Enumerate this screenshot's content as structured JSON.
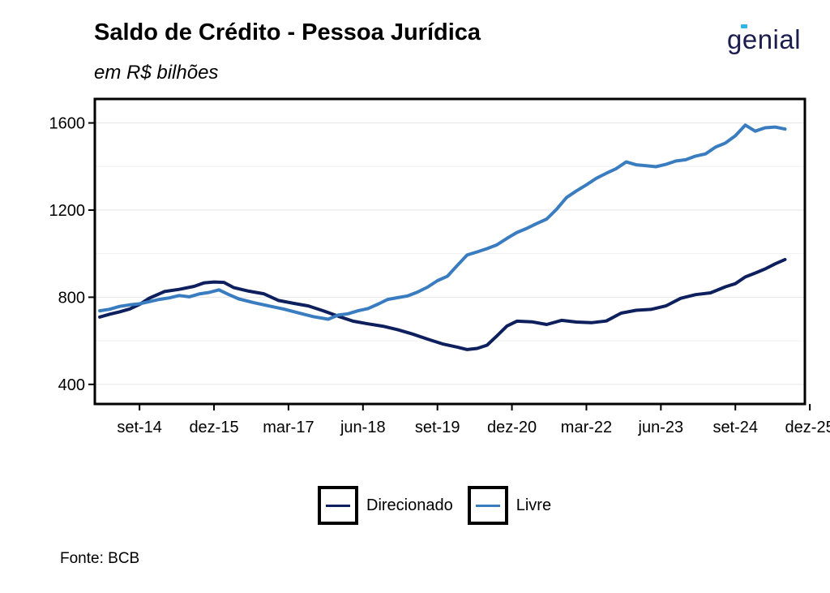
{
  "title": "Saldo de Crédito - Pessoa Jurídica",
  "subtitle": "em R$ bilhões",
  "source": "Fonte: BCB",
  "logo_text": "genial",
  "colors": {
    "Direcionado": "#0d1f5c",
    "Livre": "#3a7cc0",
    "accent": "#2fb5e8"
  },
  "chart_data": {
    "type": "line",
    "ylim": [
      310,
      1710
    ],
    "xlim": [
      "2013-12",
      "2025-11"
    ],
    "grid": "horizontal",
    "legend_placement": "bottom",
    "x_ticks": [
      {
        "date": "2014-09",
        "label": "set-14"
      },
      {
        "date": "2015-12",
        "label": "dez-15"
      },
      {
        "date": "2017-03",
        "label": "mar-17"
      },
      {
        "date": "2018-06",
        "label": "jun-18"
      },
      {
        "date": "2019-09",
        "label": "set-19"
      },
      {
        "date": "2020-12",
        "label": "dez-20"
      },
      {
        "date": "2022-03",
        "label": "mar-22"
      },
      {
        "date": "2023-06",
        "label": "jun-23"
      },
      {
        "date": "2024-09",
        "label": "set-24"
      },
      {
        "date": "2025-12",
        "label": "dez-25"
      }
    ],
    "y_ticks": [
      400,
      800,
      1200,
      1600
    ],
    "series": [
      {
        "name": "Direcionado",
        "points": [
          [
            "2014-01",
            709
          ],
          [
            "2014-03",
            722
          ],
          [
            "2014-05",
            733
          ],
          [
            "2014-07",
            746
          ],
          [
            "2014-09",
            767
          ],
          [
            "2014-11",
            796
          ],
          [
            "2015-02",
            826
          ],
          [
            "2015-05",
            836
          ],
          [
            "2015-08",
            850
          ],
          [
            "2015-10",
            866
          ],
          [
            "2015-12",
            870
          ],
          [
            "2016-02",
            868
          ],
          [
            "2016-04",
            844
          ],
          [
            "2016-07",
            828
          ],
          [
            "2016-10",
            816
          ],
          [
            "2017-01",
            785
          ],
          [
            "2017-04",
            772
          ],
          [
            "2017-07",
            760
          ],
          [
            "2017-10",
            738
          ],
          [
            "2018-01",
            713
          ],
          [
            "2018-04",
            690
          ],
          [
            "2018-07",
            678
          ],
          [
            "2018-10",
            667
          ],
          [
            "2019-01",
            651
          ],
          [
            "2019-04",
            631
          ],
          [
            "2019-07",
            608
          ],
          [
            "2019-10",
            586
          ],
          [
            "2020-01",
            571
          ],
          [
            "2020-03",
            560
          ],
          [
            "2020-05",
            565
          ],
          [
            "2020-07",
            580
          ],
          [
            "2020-09",
            623
          ],
          [
            "2020-11",
            668
          ],
          [
            "2021-01",
            690
          ],
          [
            "2021-04",
            687
          ],
          [
            "2021-07",
            675
          ],
          [
            "2021-10",
            694
          ],
          [
            "2022-01",
            686
          ],
          [
            "2022-04",
            683
          ],
          [
            "2022-07",
            691
          ],
          [
            "2022-10",
            727
          ],
          [
            "2023-01",
            740
          ],
          [
            "2023-04",
            744
          ],
          [
            "2023-07",
            760
          ],
          [
            "2023-10",
            795
          ],
          [
            "2024-01",
            812
          ],
          [
            "2024-04",
            820
          ],
          [
            "2024-07",
            848
          ],
          [
            "2024-09",
            862
          ],
          [
            "2024-11",
            893
          ],
          [
            "2025-01",
            911
          ],
          [
            "2025-03",
            930
          ],
          [
            "2025-05",
            953
          ],
          [
            "2025-07",
            973
          ]
        ]
      },
      {
        "name": "Livre",
        "points": [
          [
            "2014-01",
            738
          ],
          [
            "2014-03",
            745
          ],
          [
            "2014-05",
            758
          ],
          [
            "2014-07",
            765
          ],
          [
            "2014-09",
            770
          ],
          [
            "2014-11",
            780
          ],
          [
            "2015-01",
            790
          ],
          [
            "2015-03",
            797
          ],
          [
            "2015-05",
            808
          ],
          [
            "2015-07",
            802
          ],
          [
            "2015-09",
            815
          ],
          [
            "2015-11",
            822
          ],
          [
            "2016-01",
            834
          ],
          [
            "2016-03",
            812
          ],
          [
            "2016-05",
            792
          ],
          [
            "2016-08",
            775
          ],
          [
            "2016-11",
            760
          ],
          [
            "2017-02",
            746
          ],
          [
            "2017-05",
            728
          ],
          [
            "2017-08",
            711
          ],
          [
            "2017-11",
            699
          ],
          [
            "2018-01",
            718
          ],
          [
            "2018-03",
            724
          ],
          [
            "2018-05",
            738
          ],
          [
            "2018-07",
            748
          ],
          [
            "2018-09",
            768
          ],
          [
            "2018-11",
            790
          ],
          [
            "2019-01",
            798
          ],
          [
            "2019-03",
            806
          ],
          [
            "2019-05",
            824
          ],
          [
            "2019-07",
            846
          ],
          [
            "2019-09",
            876
          ],
          [
            "2019-11",
            896
          ],
          [
            "2020-01",
            946
          ],
          [
            "2020-03",
            994
          ],
          [
            "2020-05",
            1008
          ],
          [
            "2020-07",
            1023
          ],
          [
            "2020-09",
            1041
          ],
          [
            "2020-11",
            1070
          ],
          [
            "2021-01",
            1097
          ],
          [
            "2021-03",
            1116
          ],
          [
            "2021-05",
            1138
          ],
          [
            "2021-07",
            1159
          ],
          [
            "2021-09",
            1204
          ],
          [
            "2021-11",
            1258
          ],
          [
            "2022-01",
            1288
          ],
          [
            "2022-03",
            1316
          ],
          [
            "2022-05",
            1346
          ],
          [
            "2022-07",
            1369
          ],
          [
            "2022-09",
            1390
          ],
          [
            "2022-11",
            1421
          ],
          [
            "2023-01",
            1408
          ],
          [
            "2023-03",
            1404
          ],
          [
            "2023-05",
            1399
          ],
          [
            "2023-07",
            1410
          ],
          [
            "2023-09",
            1425
          ],
          [
            "2023-11",
            1431
          ],
          [
            "2024-01",
            1448
          ],
          [
            "2024-03",
            1458
          ],
          [
            "2024-05",
            1489
          ],
          [
            "2024-07",
            1508
          ],
          [
            "2024-09",
            1541
          ],
          [
            "2024-11",
            1590
          ],
          [
            "2025-01",
            1562
          ],
          [
            "2025-03",
            1578
          ],
          [
            "2025-05",
            1581
          ],
          [
            "2025-07",
            1572
          ]
        ]
      }
    ]
  }
}
